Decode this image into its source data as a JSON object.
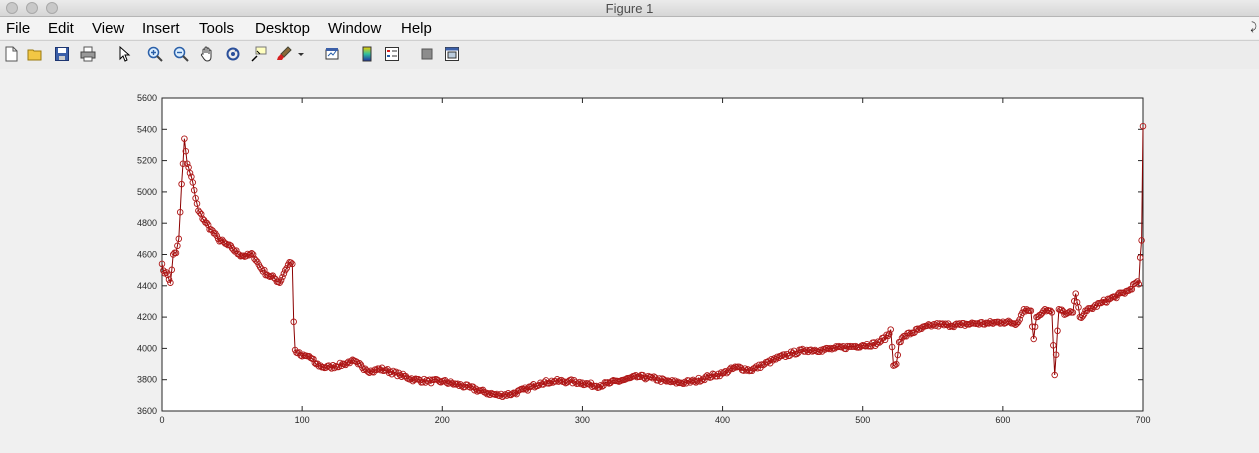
{
  "window": {
    "title": "Figure 1"
  },
  "menu": [
    "File",
    "Edit",
    "View",
    "Insert",
    "Tools",
    "Desktop",
    "Window",
    "Help"
  ],
  "toolbar": [
    {
      "name": "new-figure-icon"
    },
    {
      "name": "open-file-icon"
    },
    {
      "name": "save-icon"
    },
    {
      "name": "print-icon"
    },
    {
      "name": "edit-plot-arrow-icon"
    },
    {
      "name": "zoom-in-icon"
    },
    {
      "name": "zoom-out-icon"
    },
    {
      "name": "pan-hand-icon"
    },
    {
      "name": "rotate-3d-icon"
    },
    {
      "name": "data-cursor-icon"
    },
    {
      "name": "brush-icon"
    },
    {
      "name": "brush-dropdown-icon"
    },
    {
      "name": "link-plot-icon"
    },
    {
      "name": "insert-colorbar-icon"
    },
    {
      "name": "insert-legend-icon"
    },
    {
      "name": "hide-plot-tools-icon"
    },
    {
      "name": "show-plot-tools-icon"
    }
  ],
  "colors": {
    "line": "#8b0000",
    "marker": "#b01818"
  },
  "chart_data": {
    "type": "line",
    "marker": "circle",
    "xlim": [
      0,
      700
    ],
    "ylim": [
      3600,
      5600
    ],
    "xticks": [
      "0",
      "100",
      "200",
      "300",
      "400",
      "500",
      "600",
      "700"
    ],
    "yticks": [
      "3600",
      "3800",
      "4000",
      "4200",
      "4400",
      "4600",
      "4800",
      "5000",
      "5200",
      "5400",
      "5600"
    ],
    "grid": false,
    "anchors": [
      [
        0,
        4540
      ],
      [
        2,
        4480
      ],
      [
        4,
        4470
      ],
      [
        6,
        4420
      ],
      [
        8,
        4600
      ],
      [
        10,
        4610
      ],
      [
        12,
        4700
      ],
      [
        14,
        5050
      ],
      [
        15,
        5180
      ],
      [
        16,
        5340
      ],
      [
        17,
        5260
      ],
      [
        18,
        5180
      ],
      [
        20,
        5120
      ],
      [
        22,
        5060
      ],
      [
        24,
        4960
      ],
      [
        26,
        4880
      ],
      [
        30,
        4820
      ],
      [
        35,
        4760
      ],
      [
        40,
        4700
      ],
      [
        45,
        4670
      ],
      [
        50,
        4640
      ],
      [
        55,
        4600
      ],
      [
        60,
        4590
      ],
      [
        65,
        4600
      ],
      [
        70,
        4520
      ],
      [
        75,
        4470
      ],
      [
        80,
        4450
      ],
      [
        84,
        4420
      ],
      [
        88,
        4500
      ],
      [
        91,
        4550
      ],
      [
        93,
        4540
      ],
      [
        94,
        4170
      ],
      [
        95,
        3990
      ],
      [
        97,
        3970
      ],
      [
        100,
        3950
      ],
      [
        105,
        3950
      ],
      [
        110,
        3900
      ],
      [
        115,
        3880
      ],
      [
        120,
        3880
      ],
      [
        130,
        3900
      ],
      [
        135,
        3920
      ],
      [
        140,
        3900
      ],
      [
        145,
        3870
      ],
      [
        150,
        3850
      ],
      [
        155,
        3870
      ],
      [
        160,
        3860
      ],
      [
        170,
        3830
      ],
      [
        180,
        3800
      ],
      [
        190,
        3790
      ],
      [
        200,
        3790
      ],
      [
        210,
        3770
      ],
      [
        220,
        3750
      ],
      [
        230,
        3720
      ],
      [
        240,
        3700
      ],
      [
        250,
        3710
      ],
      [
        260,
        3740
      ],
      [
        270,
        3780
      ],
      [
        280,
        3790
      ],
      [
        290,
        3790
      ],
      [
        300,
        3780
      ],
      [
        310,
        3760
      ],
      [
        320,
        3780
      ],
      [
        330,
        3800
      ],
      [
        340,
        3820
      ],
      [
        350,
        3810
      ],
      [
        360,
        3790
      ],
      [
        370,
        3780
      ],
      [
        380,
        3790
      ],
      [
        390,
        3820
      ],
      [
        400,
        3840
      ],
      [
        410,
        3880
      ],
      [
        420,
        3860
      ],
      [
        430,
        3900
      ],
      [
        440,
        3940
      ],
      [
        450,
        3970
      ],
      [
        460,
        3990
      ],
      [
        470,
        3990
      ],
      [
        480,
        4000
      ],
      [
        490,
        4010
      ],
      [
        500,
        4020
      ],
      [
        510,
        4030
      ],
      [
        518,
        4080
      ],
      [
        520,
        4120
      ],
      [
        522,
        3890
      ],
      [
        524,
        3900
      ],
      [
        526,
        4040
      ],
      [
        530,
        4080
      ],
      [
        540,
        4120
      ],
      [
        550,
        4150
      ],
      [
        560,
        4150
      ],
      [
        570,
        4150
      ],
      [
        580,
        4160
      ],
      [
        590,
        4160
      ],
      [
        600,
        4170
      ],
      [
        610,
        4160
      ],
      [
        615,
        4250
      ],
      [
        620,
        4240
      ],
      [
        622,
        4060
      ],
      [
        624,
        4200
      ],
      [
        630,
        4250
      ],
      [
        635,
        4230
      ],
      [
        636,
        4020
      ],
      [
        637,
        3830
      ],
      [
        638,
        3960
      ],
      [
        640,
        4250
      ],
      [
        645,
        4220
      ],
      [
        650,
        4230
      ],
      [
        652,
        4350
      ],
      [
        655,
        4200
      ],
      [
        660,
        4240
      ],
      [
        670,
        4290
      ],
      [
        680,
        4330
      ],
      [
        690,
        4370
      ],
      [
        695,
        4420
      ],
      [
        697,
        4410
      ],
      [
        698,
        4580
      ],
      [
        699,
        4690
      ],
      [
        700,
        5420
      ]
    ]
  }
}
